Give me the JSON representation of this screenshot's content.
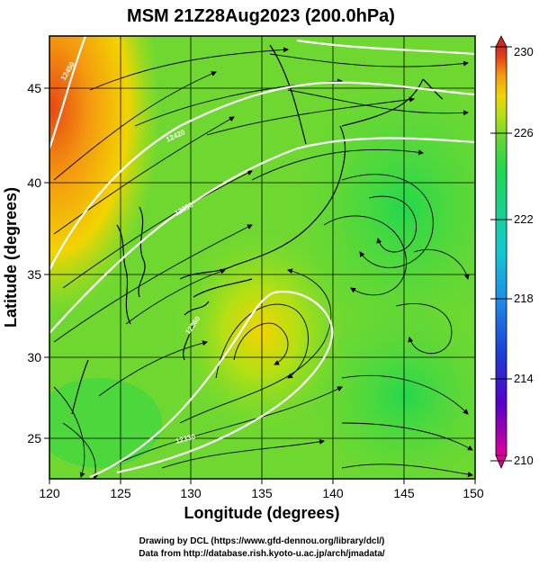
{
  "title": "MSM 21Z28Aug2023 (200.0hPa)",
  "axes": {
    "xlabel": "Longitude (degrees)",
    "ylabel": "Latitude  (degrees)",
    "x_ticks": [
      "120",
      "125",
      "130",
      "135",
      "140",
      "145",
      "150"
    ],
    "y_ticks": [
      "25",
      "30",
      "35",
      "40",
      "45"
    ]
  },
  "colorbar": {
    "ticks": [
      "230",
      "226",
      "222",
      "218",
      "214",
      "210"
    ],
    "colors": [
      "#dd0099",
      "#5500cc",
      "#1a3fd6",
      "#1e8ce8",
      "#14c8d2",
      "#18d28c",
      "#22d84c",
      "#5ed63a",
      "#b2e014",
      "#f2d400",
      "#f49a10",
      "#e84a12",
      "#d02828"
    ]
  },
  "contour_labels": [
    "12450",
    "12420",
    "12390",
    "12360",
    "12330"
  ],
  "credits": {
    "line1": "Drawing by DCL (https://www.gfd-dennou.org/library/dcl/)",
    "line2": "Data from http://database.rish.kyoto-u.ac.jp/arch/jmadata/"
  }
}
